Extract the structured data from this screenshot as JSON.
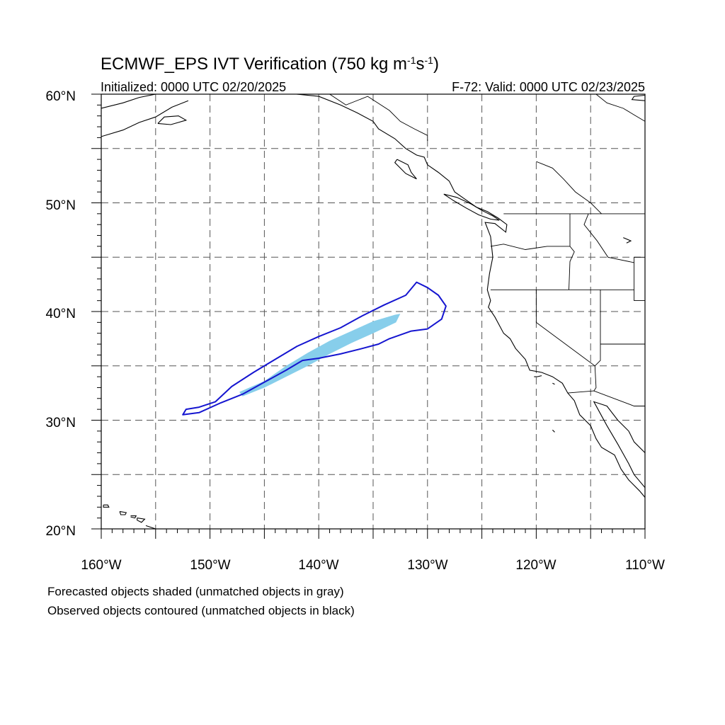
{
  "title": {
    "prefix": "ECMWF_EPS IVT Verification (750 kg m",
    "sup1": "-1",
    "mid": "s",
    "sup2": "-1",
    "suffix": ")"
  },
  "subtitle_left": "Initialized: 0000 UTC 02/20/2025",
  "subtitle_right": "F-72: Valid: 0000 UTC 02/23/2025",
  "lat_labels": [
    "60°N",
    "50°N",
    "40°N",
    "30°N",
    "20°N"
  ],
  "lon_labels": [
    "160°W",
    "150°W",
    "140°W",
    "130°W",
    "120°W",
    "110°W"
  ],
  "notes": [
    "Forecasted objects shaded (unmatched objects in gray)",
    "Observed objects contoured (unmatched objects in black)"
  ],
  "colors": {
    "forecast_fill": "#87ceeb",
    "observed_contour": "#1515d0",
    "coastline": "#000000",
    "grid": "#555555"
  },
  "map_extent": {
    "lon": [
      -160,
      -110
    ],
    "lat": [
      20,
      60
    ]
  },
  "forecast_object": {
    "matched": true,
    "outline_lonlat": [
      [
        -147.3,
        32.6
      ],
      [
        -145.0,
        33.6
      ],
      [
        -143.0,
        35.0
      ],
      [
        -141.0,
        36.2
      ],
      [
        -139.0,
        37.3
      ],
      [
        -137.0,
        38.2
      ],
      [
        -135.0,
        39.1
      ],
      [
        -133.0,
        39.7
      ],
      [
        -132.5,
        39.8
      ],
      [
        -132.9,
        39.0
      ],
      [
        -135.0,
        38.0
      ],
      [
        -137.0,
        37.1
      ],
      [
        -139.0,
        36.1
      ],
      [
        -141.0,
        35.0
      ],
      [
        -143.0,
        34.0
      ],
      [
        -145.0,
        33.0
      ],
      [
        -147.0,
        32.2
      ]
    ]
  },
  "observed_object": {
    "matched": true,
    "outline_lonlat": [
      [
        -152.5,
        30.5
      ],
      [
        -152.2,
        31.0
      ],
      [
        -151.0,
        31.2
      ],
      [
        -149.5,
        31.7
      ],
      [
        -148.0,
        33.1
      ],
      [
        -146.0,
        34.4
      ],
      [
        -144.0,
        35.6
      ],
      [
        -142.0,
        36.8
      ],
      [
        -140.0,
        37.7
      ],
      [
        -138.0,
        38.5
      ],
      [
        -136.0,
        39.6
      ],
      [
        -134.0,
        40.6
      ],
      [
        -132.0,
        41.5
      ],
      [
        -131.0,
        42.7
      ],
      [
        -130.0,
        42.2
      ],
      [
        -129.0,
        41.5
      ],
      [
        -128.3,
        40.5
      ],
      [
        -128.7,
        39.3
      ],
      [
        -130.0,
        38.4
      ],
      [
        -131.5,
        38.2
      ],
      [
        -133.5,
        37.5
      ],
      [
        -134.5,
        37.0
      ],
      [
        -136.0,
        36.6
      ],
      [
        -138.0,
        36.1
      ],
      [
        -140.0,
        35.7
      ],
      [
        -141.5,
        35.5
      ],
      [
        -143.0,
        34.6
      ],
      [
        -145.0,
        33.5
      ],
      [
        -147.0,
        32.4
      ],
      [
        -149.0,
        31.6
      ],
      [
        -151.0,
        30.7
      ]
    ]
  },
  "coastline_lonlat": [
    [
      [
        -150.0,
        61.0
      ],
      [
        -146.0,
        60.8
      ],
      [
        -143.0,
        60.1
      ],
      [
        -140.0,
        59.8
      ],
      [
        -138.0,
        59.0
      ],
      [
        -136.5,
        58.3
      ],
      [
        -135.0,
        57.5
      ],
      [
        -134.5,
        56.8
      ],
      [
        -133.0,
        55.9
      ],
      [
        -132.0,
        55.0
      ],
      [
        -131.0,
        54.4
      ],
      [
        -130.3,
        54.2
      ],
      [
        -130.0,
        53.5
      ],
      [
        -129.0,
        52.8
      ],
      [
        -128.0,
        52.0
      ],
      [
        -127.5,
        51.0
      ],
      [
        -126.5,
        50.3
      ],
      [
        -125.5,
        49.6
      ],
      [
        -124.5,
        49.2
      ],
      [
        -123.5,
        48.6
      ],
      [
        -122.7,
        48.0
      ],
      [
        -122.8,
        47.3
      ],
      [
        -123.8,
        48.1
      ],
      [
        -124.7,
        48.2
      ],
      [
        -124.2,
        46.9
      ],
      [
        -124.0,
        45.0
      ],
      [
        -124.3,
        43.5
      ],
      [
        -124.5,
        42.0
      ],
      [
        -124.2,
        41.0
      ],
      [
        -124.4,
        40.4
      ],
      [
        -123.8,
        39.5
      ],
      [
        -123.0,
        38.0
      ],
      [
        -122.4,
        37.5
      ],
      [
        -121.9,
        36.6
      ],
      [
        -121.0,
        35.6
      ],
      [
        -120.6,
        34.6
      ],
      [
        -119.5,
        34.4
      ],
      [
        -118.5,
        34.0
      ],
      [
        -117.6,
        33.4
      ],
      [
        -117.1,
        32.5
      ],
      [
        -116.5,
        31.8
      ],
      [
        -116.0,
        30.5
      ],
      [
        -115.0,
        29.5
      ],
      [
        -114.5,
        28.3
      ],
      [
        -114.0,
        27.5
      ],
      [
        -112.8,
        26.8
      ],
      [
        -112.2,
        25.5
      ],
      [
        -111.5,
        24.5
      ],
      [
        -110.5,
        23.5
      ],
      [
        -110.0,
        22.9
      ]
    ],
    [
      [
        -110.0,
        23.8
      ],
      [
        -111.0,
        25.0
      ],
      [
        -111.5,
        26.0
      ],
      [
        -112.5,
        27.8
      ],
      [
        -113.5,
        29.5
      ],
      [
        -114.7,
        31.7
      ],
      [
        -113.5,
        31.3
      ],
      [
        -112.5,
        30.0
      ],
      [
        -111.5,
        29.0
      ],
      [
        -111.0,
        28.0
      ],
      [
        -110.0,
        27.0
      ]
    ],
    [
      [
        -128.5,
        50.8
      ],
      [
        -127.3,
        50.5
      ],
      [
        -126.0,
        49.9
      ],
      [
        -125.0,
        49.3
      ],
      [
        -124.0,
        48.8
      ],
      [
        -123.4,
        48.4
      ],
      [
        -124.2,
        48.5
      ],
      [
        -125.3,
        48.9
      ],
      [
        -126.4,
        49.5
      ],
      [
        -127.6,
        50.2
      ],
      [
        -128.5,
        50.8
      ]
    ],
    [
      [
        -132.8,
        54.0
      ],
      [
        -131.8,
        53.5
      ],
      [
        -131.5,
        52.8
      ],
      [
        -131.0,
        52.2
      ],
      [
        -132.0,
        52.7
      ],
      [
        -132.5,
        53.2
      ],
      [
        -133.0,
        53.7
      ],
      [
        -132.8,
        54.0
      ]
    ],
    [
      [
        -160.0,
        58.7
      ],
      [
        -158.0,
        59.2
      ],
      [
        -156.5,
        59.7
      ],
      [
        -155.0,
        60.0
      ],
      [
        -154.0,
        60.5
      ]
    ],
    [
      [
        -160.0,
        56.1
      ],
      [
        -158.0,
        56.7
      ],
      [
        -156.5,
        57.4
      ],
      [
        -155.0,
        57.9
      ],
      [
        -153.5,
        58.8
      ],
      [
        -152.0,
        59.4
      ]
    ],
    [
      [
        -154.8,
        57.3
      ],
      [
        -153.6,
        57.2
      ],
      [
        -152.2,
        57.6
      ],
      [
        -152.9,
        58.0
      ],
      [
        -154.2,
        57.9
      ],
      [
        -154.8,
        57.3
      ]
    ],
    [
      [
        -110.0,
        59.4
      ],
      [
        -111.2,
        59.5
      ],
      [
        -111.0,
        59.8
      ],
      [
        -110.0,
        59.9
      ]
    ],
    [
      [
        -159.8,
        22.2
      ],
      [
        -159.4,
        22.2
      ],
      [
        -159.3,
        22.0
      ],
      [
        -159.8,
        22.0
      ],
      [
        -159.8,
        22.2
      ]
    ],
    [
      [
        -158.3,
        21.6
      ],
      [
        -157.7,
        21.5
      ],
      [
        -157.8,
        21.3
      ],
      [
        -158.2,
        21.3
      ],
      [
        -158.3,
        21.6
      ]
    ],
    [
      [
        -157.3,
        21.2
      ],
      [
        -156.8,
        21.2
      ],
      [
        -156.9,
        21.0
      ],
      [
        -157.3,
        21.1
      ]
    ],
    [
      [
        -156.7,
        21.0
      ],
      [
        -156.0,
        20.9
      ],
      [
        -156.3,
        20.6
      ],
      [
        -156.7,
        20.8
      ],
      [
        -156.7,
        21.0
      ]
    ],
    [
      [
        -155.9,
        20.3
      ],
      [
        -155.0,
        20.0
      ],
      [
        -155.0,
        19.8
      ]
    ],
    [
      [
        -119.5,
        34.1
      ],
      [
        -119.9,
        34.0
      ],
      [
        -120.2,
        34.0
      ]
    ],
    [
      [
        -118.5,
        33.4
      ],
      [
        -118.3,
        33.3
      ]
    ],
    [
      [
        -118.5,
        29.1
      ],
      [
        -118.3,
        28.9
      ]
    ],
    [
      [
        -112.0,
        46.8
      ],
      [
        -111.3,
        46.5
      ],
      [
        -111.7,
        46.3
      ]
    ]
  ],
  "border_lonlat": [
    [
      [
        -123.0,
        49.0
      ],
      [
        -110.0,
        49.0
      ]
    ],
    [
      [
        -124.2,
        46.0
      ],
      [
        -123.0,
        46.2
      ],
      [
        -121.0,
        45.7
      ],
      [
        -119.0,
        46.0
      ],
      [
        -116.9,
        46.0
      ]
    ],
    [
      [
        -116.9,
        49.0
      ],
      [
        -116.9,
        46.0
      ],
      [
        -116.5,
        45.5
      ],
      [
        -116.9,
        44.6
      ],
      [
        -117.0,
        42.0
      ]
    ],
    [
      [
        -124.2,
        42.0
      ],
      [
        -111.0,
        42.0
      ]
    ],
    [
      [
        -120.0,
        42.0
      ],
      [
        -120.0,
        39.0
      ],
      [
        -114.6,
        35.0
      ]
    ],
    [
      [
        -114.1,
        42.0
      ],
      [
        -114.1,
        35.5
      ],
      [
        -114.6,
        35.0
      ]
    ],
    [
      [
        -114.6,
        35.0
      ],
      [
        -114.5,
        33.0
      ],
      [
        -114.7,
        32.7
      ]
    ],
    [
      [
        -117.1,
        32.5
      ],
      [
        -114.7,
        32.7
      ],
      [
        -111.0,
        31.3
      ],
      [
        -110.0,
        31.3
      ]
    ],
    [
      [
        -115.2,
        49.0
      ],
      [
        -115.6,
        48.0
      ],
      [
        -114.4,
        46.5
      ],
      [
        -113.4,
        45.0
      ],
      [
        -111.0,
        44.5
      ]
    ],
    [
      [
        -111.0,
        45.0
      ],
      [
        -110.0,
        45.0
      ]
    ],
    [
      [
        -111.0,
        45.0
      ],
      [
        -111.0,
        41.0
      ],
      [
        -110.0,
        41.0
      ]
    ],
    [
      [
        -114.1,
        37.0
      ],
      [
        -110.0,
        37.0
      ]
    ],
    [
      [
        -130.0,
        55.7
      ],
      [
        -130.0,
        56.2
      ],
      [
        -131.2,
        56.8
      ],
      [
        -132.5,
        57.5
      ],
      [
        -133.5,
        58.5
      ],
      [
        -135.5,
        59.8
      ],
      [
        -137.5,
        59.0
      ],
      [
        -139.0,
        60.0
      ],
      [
        -141.0,
        60.3
      ]
    ],
    [
      [
        -120.0,
        60.0
      ],
      [
        -120.0,
        61.0
      ]
    ],
    [
      [
        -114.5,
        60.0
      ],
      [
        -113.5,
        59.2
      ],
      [
        -112.0,
        58.7
      ],
      [
        -111.0,
        58.1
      ],
      [
        -110.0,
        57.5
      ]
    ],
    [
      [
        -120.0,
        53.8
      ],
      [
        -118.5,
        53.2
      ],
      [
        -117.5,
        52.2
      ],
      [
        -116.4,
        51.0
      ],
      [
        -115.0,
        50.0
      ],
      [
        -114.0,
        49.0
      ]
    ]
  ]
}
